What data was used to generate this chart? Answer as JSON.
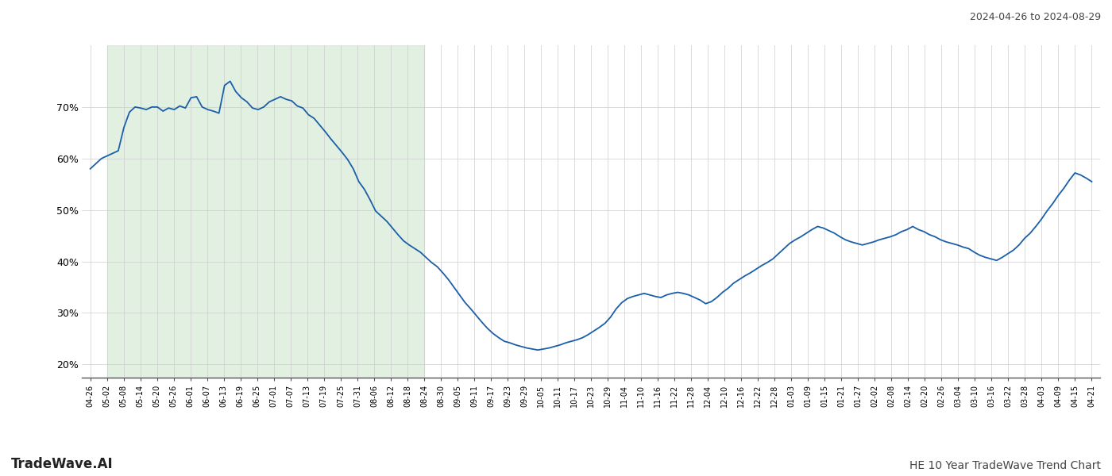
{
  "title_right": "2024-04-26 to 2024-08-29",
  "footer_left": "TradeWave.AI",
  "footer_right": "HE 10 Year TradeWave Trend Chart",
  "background_color": "#ffffff",
  "line_color": "#1a5fa8",
  "line_width": 1.3,
  "shade_color": "#d6ead6",
  "shade_alpha": 0.7,
  "ylim": [
    0.175,
    0.82
  ],
  "yticks": [
    0.2,
    0.3,
    0.4,
    0.5,
    0.6,
    0.7
  ],
  "grid_color": "#cccccc",
  "grid_alpha": 0.8,
  "tick_labels": [
    "04-26",
    "05-02",
    "05-08",
    "05-14",
    "05-20",
    "05-26",
    "06-01",
    "06-07",
    "06-13",
    "06-19",
    "06-25",
    "07-01",
    "07-07",
    "07-13",
    "07-19",
    "07-25",
    "07-31",
    "08-06",
    "08-12",
    "08-18",
    "08-24",
    "08-30",
    "09-05",
    "09-11",
    "09-17",
    "09-23",
    "09-29",
    "10-05",
    "10-11",
    "10-17",
    "10-23",
    "10-29",
    "11-04",
    "11-10",
    "11-16",
    "11-22",
    "11-28",
    "12-04",
    "12-10",
    "12-16",
    "12-22",
    "12-28",
    "01-03",
    "01-09",
    "01-15",
    "01-21",
    "01-27",
    "02-02",
    "02-08",
    "02-14",
    "02-20",
    "02-26",
    "03-04",
    "03-10",
    "03-16",
    "03-22",
    "03-28",
    "04-03",
    "04-09",
    "04-15",
    "04-21"
  ],
  "shade_start_label": "05-02",
  "shade_end_label": "08-24",
  "values_x": [
    0,
    1,
    2,
    3,
    4,
    5,
    6,
    7,
    8,
    9,
    10,
    11,
    12,
    13,
    14,
    15,
    16,
    17,
    18,
    19,
    20,
    21,
    22,
    23,
    24,
    25,
    26,
    27,
    28,
    29,
    30,
    31,
    32,
    33,
    34,
    35,
    36,
    37,
    38,
    39,
    40,
    41,
    42,
    43,
    44,
    45,
    46,
    47,
    48,
    49,
    50,
    51,
    52,
    53,
    54,
    55,
    56,
    57,
    58,
    59,
    60
  ],
  "values_y": [
    0.58,
    0.59,
    0.6,
    0.605,
    0.61,
    0.615,
    0.66,
    0.69,
    0.7,
    0.698,
    0.695,
    0.7,
    0.7,
    0.692,
    0.698,
    0.695,
    0.702,
    0.698,
    0.718,
    0.72,
    0.7,
    0.695,
    0.692,
    0.688,
    0.742,
    0.75,
    0.73,
    0.718,
    0.71,
    0.698,
    0.695,
    0.7,
    0.71,
    0.715,
    0.72,
    0.715,
    0.712,
    0.702,
    0.698,
    0.685,
    0.678,
    0.665,
    0.652,
    0.638,
    0.625,
    0.612,
    0.598,
    0.58,
    0.555,
    0.54,
    0.52,
    0.498,
    0.488,
    0.478,
    0.465,
    0.452,
    0.44,
    0.432,
    0.425,
    0.418,
    0.408,
    0.398,
    0.39,
    0.378,
    0.365,
    0.35,
    0.335,
    0.32,
    0.308,
    0.295,
    0.282,
    0.27,
    0.26,
    0.252,
    0.245,
    0.242,
    0.238,
    0.235,
    0.232,
    0.23,
    0.228,
    0.23,
    0.232,
    0.235,
    0.238,
    0.242,
    0.245,
    0.248,
    0.252,
    0.258,
    0.265,
    0.272,
    0.28,
    0.292,
    0.308,
    0.32,
    0.328,
    0.332,
    0.335,
    0.338,
    0.335,
    0.332,
    0.33,
    0.335,
    0.338,
    0.34,
    0.338,
    0.335,
    0.33,
    0.325,
    0.318,
    0.322,
    0.33,
    0.34,
    0.348,
    0.358,
    0.365,
    0.372,
    0.378,
    0.385,
    0.392,
    0.398,
    0.405,
    0.415,
    0.425,
    0.435,
    0.442,
    0.448,
    0.455,
    0.462,
    0.468,
    0.465,
    0.46,
    0.455,
    0.448,
    0.442,
    0.438,
    0.435,
    0.432,
    0.435,
    0.438,
    0.442,
    0.445,
    0.448,
    0.452,
    0.458,
    0.462,
    0.468,
    0.462,
    0.458,
    0.452,
    0.448,
    0.442,
    0.438,
    0.435,
    0.432,
    0.428,
    0.425,
    0.418,
    0.412,
    0.408,
    0.405,
    0.402,
    0.408,
    0.415,
    0.422,
    0.432,
    0.445,
    0.455,
    0.468,
    0.482,
    0.498,
    0.512,
    0.528,
    0.542,
    0.558,
    0.572,
    0.568,
    0.562,
    0.555
  ]
}
